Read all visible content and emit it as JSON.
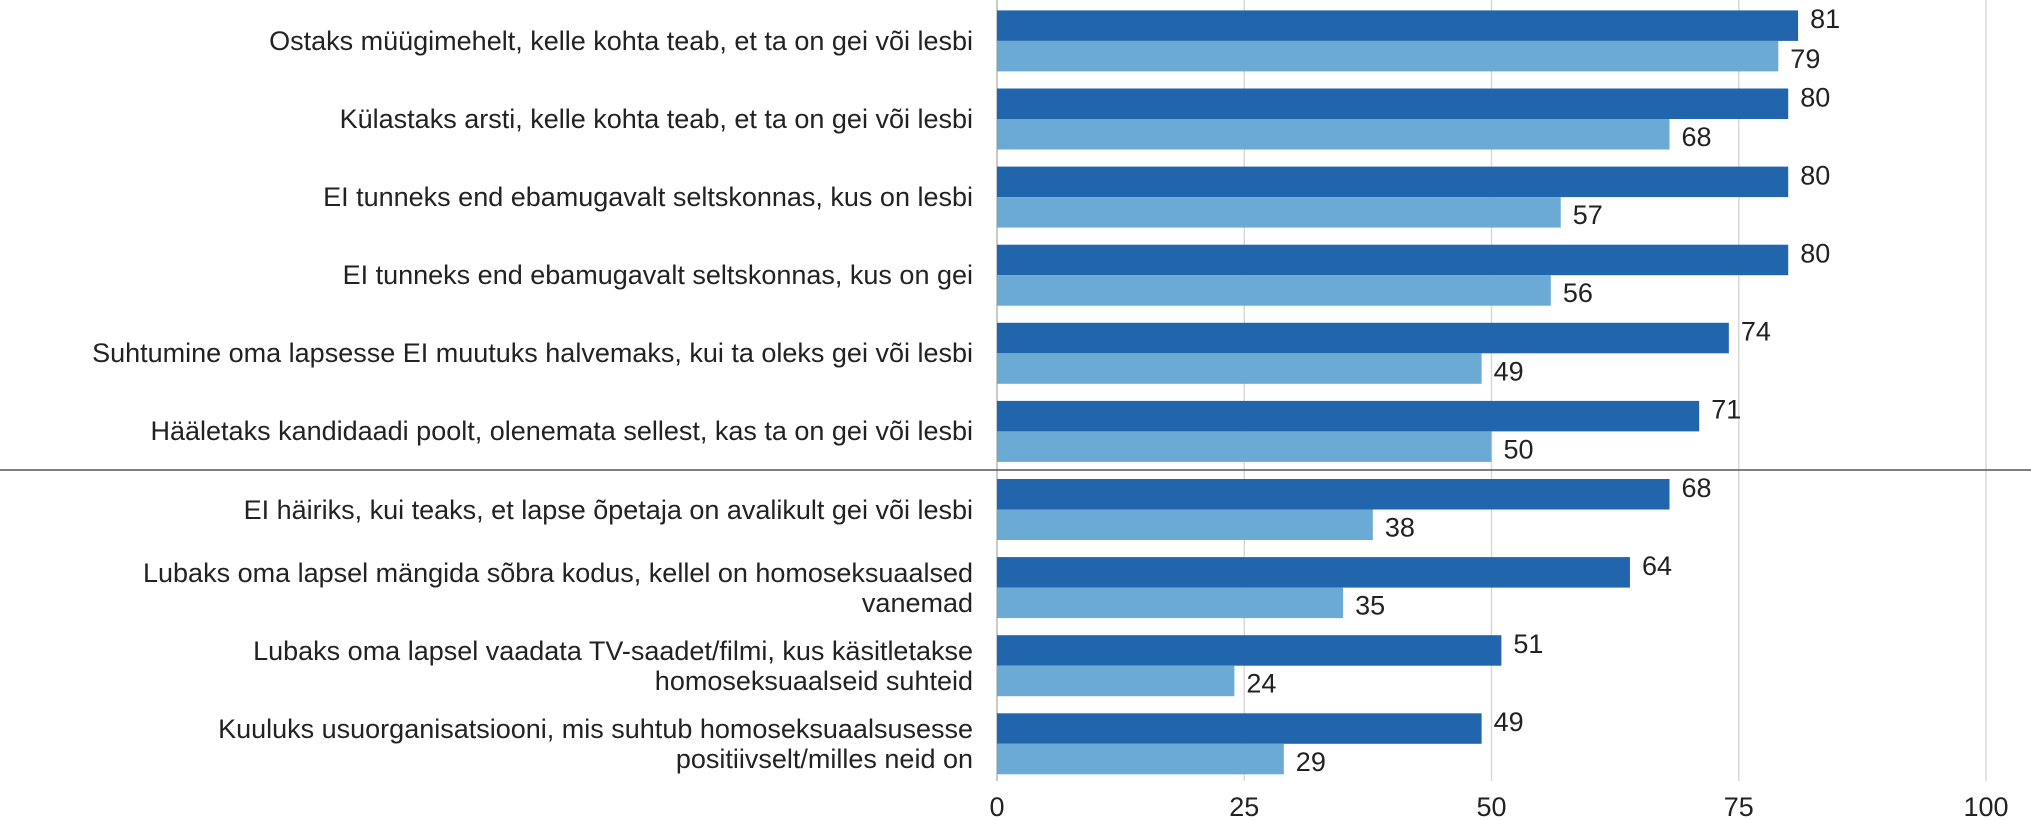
{
  "chart_data": {
    "type": "bar",
    "orientation": "horizontal",
    "categories": [
      "Ostaks müügimehelt, kelle kohta teab, et ta on gei või lesbi",
      "Külastaks arsti, kelle kohta teab, et ta on gei või lesbi",
      "EI tunneks end ebamugavalt seltskonnas, kus on lesbi",
      "EI tunneks end ebamugavalt seltskonnas, kus on gei",
      "Suhtumine oma lapsesse EI muutuks halvemaks, kui ta oleks gei või lesbi",
      "Hääletaks kandidaadi poolt, olenemata sellest, kas ta on gei või lesbi",
      "EI häiriks, kui teaks, et lapse õpetaja on avalikult gei või lesbi",
      "Lubaks oma lapsel mängida sõbra kodus, kellel on homoseksuaalsed\nvanemad",
      "Lubaks oma lapsel vaadata TV-saadet/filmi, kus käsitletakse\nhomoseksuaalseid suhteid",
      "Kuuluks usuorganisatsiooni, mis suhtub homoseksuaalsusesse\npositiivselt/milles neid on"
    ],
    "series": [
      {
        "color": "#2166ac",
        "values": [
          81,
          80,
          80,
          80,
          74,
          71,
          68,
          64,
          51,
          49
        ]
      },
      {
        "color": "#6aaad4",
        "values": [
          79,
          68,
          57,
          56,
          49,
          50,
          38,
          35,
          24,
          29
        ]
      }
    ],
    "xlim": [
      0,
      100
    ],
    "xticks": [
      0,
      25,
      50,
      75,
      100
    ],
    "grid": true
  }
}
